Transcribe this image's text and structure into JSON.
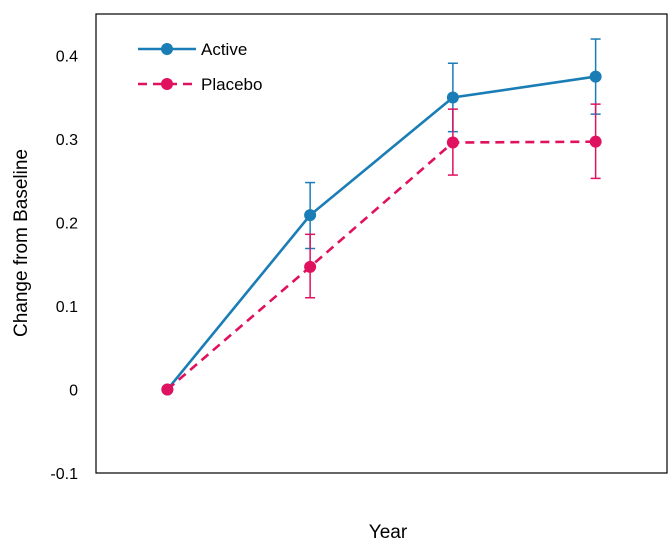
{
  "chart_data": {
    "type": "line",
    "title": "",
    "xlabel": "Year",
    "ylabel": "Change from Baseline",
    "x": [
      0,
      1,
      2,
      3
    ],
    "xlim": [
      -0.5,
      3.5
    ],
    "ylim": [
      -0.1,
      0.45
    ],
    "yticks": [
      -0.1,
      0,
      0.1,
      0.2,
      0.3,
      0.4
    ],
    "ytick_labels": [
      "-0.1",
      "0",
      "0.1",
      "0.2",
      "0.3",
      "0.4"
    ],
    "grid": false,
    "legend_position": "top-left",
    "series": [
      {
        "name": "Active",
        "color": "#1A7DB6",
        "line_style": "solid",
        "marker": "circle",
        "values": [
          0,
          0.209,
          0.35,
          0.375
        ],
        "err_lower": [
          0,
          0.169,
          0.309,
          0.33
        ],
        "err_upper": [
          0,
          0.248,
          0.391,
          0.42
        ]
      },
      {
        "name": "Placebo",
        "color": "#E0115F",
        "line_style": "dashed",
        "marker": "circle",
        "values": [
          0,
          0.147,
          0.296,
          0.297
        ],
        "err_lower": [
          0,
          0.11,
          0.257,
          0.253
        ],
        "err_upper": [
          0,
          0.186,
          0.336,
          0.342
        ]
      }
    ]
  }
}
